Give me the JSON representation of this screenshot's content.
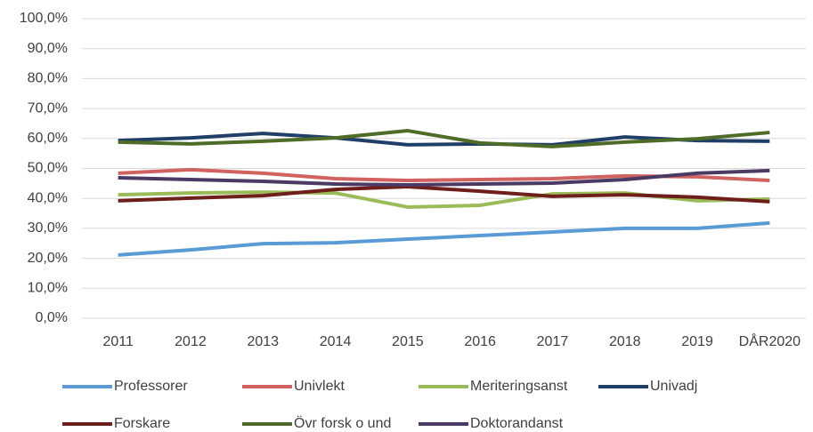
{
  "chart_data": {
    "type": "line",
    "categories": [
      "2011",
      "2012",
      "2013",
      "2014",
      "2015",
      "2016",
      "2017",
      "2018",
      "2019",
      "DÅR2020"
    ],
    "series": [
      {
        "name": "Professorer",
        "color": "#5b9bd5",
        "values": [
          21.1,
          22.8,
          24.9,
          25.2,
          26.4,
          27.6,
          28.8,
          30.0,
          30.0,
          31.8
        ]
      },
      {
        "name": "Univlekt",
        "color": "#d0625f",
        "values": [
          48.4,
          49.6,
          48.4,
          46.6,
          46.0,
          46.3,
          46.6,
          47.5,
          47.2,
          46.0
        ]
      },
      {
        "name": "Meriteringsanst",
        "color": "#9bbb59",
        "values": [
          41.2,
          41.8,
          42.1,
          41.8,
          37.1,
          37.7,
          41.5,
          41.8,
          39.2,
          39.8
        ]
      },
      {
        "name": "Univadj",
        "color": "#1f3f66",
        "values": [
          59.3,
          60.2,
          61.7,
          60.2,
          57.9,
          58.2,
          57.9,
          60.5,
          59.3,
          59.1
        ]
      },
      {
        "name": "Forskare",
        "color": "#6e1f1c",
        "values": [
          39.2,
          40.1,
          40.9,
          43.0,
          43.9,
          42.4,
          40.7,
          41.2,
          40.4,
          38.9
        ]
      },
      {
        "name": "Övr forsk o und",
        "color": "#4f6b28",
        "values": [
          58.8,
          58.2,
          59.1,
          60.2,
          62.6,
          58.5,
          57.3,
          58.8,
          59.9,
          62.0
        ]
      },
      {
        "name": "Doktorandanst",
        "color": "#4b3a63",
        "values": [
          46.9,
          46.3,
          45.7,
          44.8,
          44.5,
          44.8,
          45.1,
          46.3,
          48.4,
          49.3
        ]
      }
    ],
    "ylim": [
      0,
      100
    ],
    "yticks": [
      {
        "value": 0,
        "label": "0,0%"
      },
      {
        "value": 10,
        "label": "10,0%"
      },
      {
        "value": 20,
        "label": "20,0%"
      },
      {
        "value": 30,
        "label": "30,0%"
      },
      {
        "value": 40,
        "label": "40,0%"
      },
      {
        "value": 50,
        "label": "50,0%"
      },
      {
        "value": 60,
        "label": "60,0%"
      },
      {
        "value": 70,
        "label": "70,0%"
      },
      {
        "value": 80,
        "label": "80,0%"
      },
      {
        "value": 90,
        "label": "90,0%"
      },
      {
        "value": 100,
        "label": "100,0%"
      }
    ],
    "grid": true
  }
}
